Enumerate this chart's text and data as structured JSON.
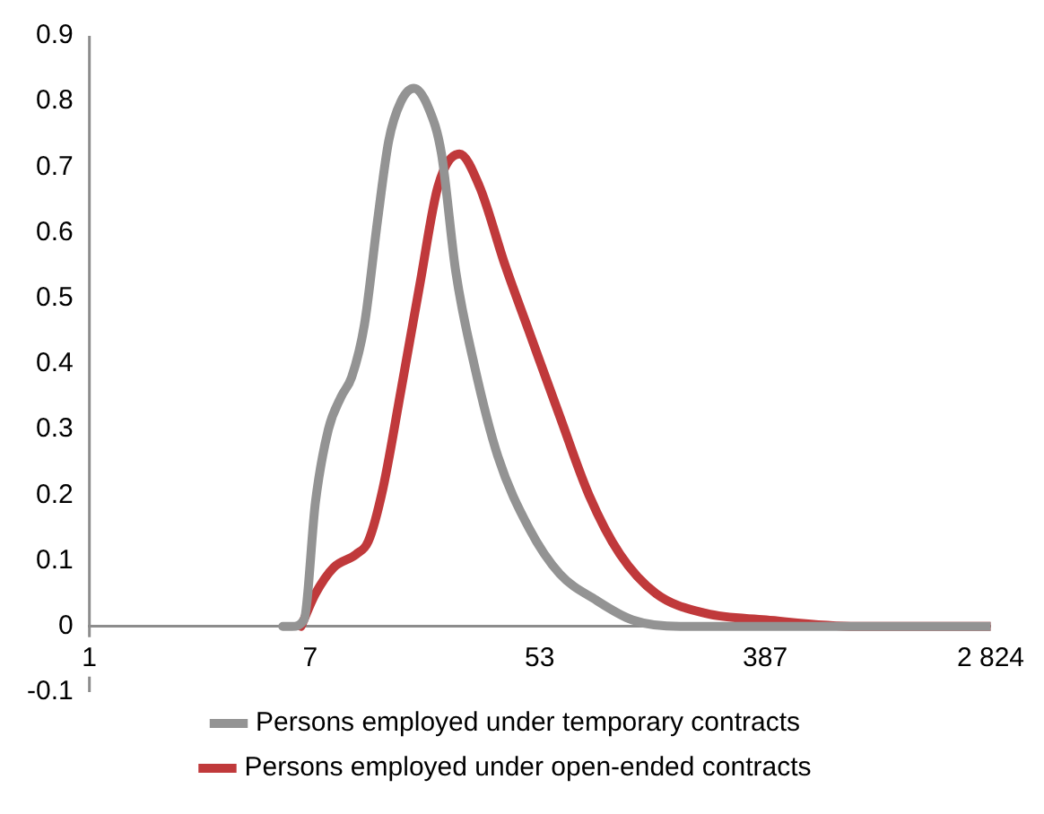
{
  "chart_data": {
    "type": "line",
    "log": "x",
    "xlim": [
      1,
      2824
    ],
    "xticks": [
      1,
      7,
      53,
      387,
      {
        "value": 2824,
        "label": "2 824"
      }
    ],
    "ylim": [
      -0.1,
      0.9
    ],
    "yticks": [
      -0.1,
      0,
      0.1,
      0.2,
      0.3,
      0.4,
      0.5,
      0.6,
      0.7,
      0.8,
      0.9
    ],
    "grid": false,
    "legend": "bottom",
    "marker": "none",
    "line_style": "solid",
    "series": [
      {
        "name": "Persons employed under temporary contracts",
        "color": "#939393",
        "x": [
          5.5,
          5.96,
          6.63,
          7.34,
          8.22,
          9.2,
          10.1,
          11.3,
          12.7,
          14,
          15.6,
          17.5,
          19.9,
          22.3,
          25.3,
          29.7,
          36.6,
          48.2,
          63.3,
          87.3,
          120,
          183,
          390,
          2824
        ],
        "values": [
          0,
          0,
          0.01,
          0.19,
          0.3,
          0.35,
          0.38,
          0.46,
          0.62,
          0.74,
          0.8,
          0.82,
          0.79,
          0.72,
          0.54,
          0.4,
          0.26,
          0.15,
          0.08,
          0.04,
          0.01,
          0,
          0,
          0
        ]
      },
      {
        "name": "Persons employed under open-ended contracts",
        "color": "#c0393b",
        "x": [
          6.46,
          7.34,
          8.62,
          10.5,
          11.7,
          13.3,
          15.6,
          18.4,
          21.6,
          26.1,
          31.2,
          39.1,
          48.2,
          63.3,
          81.9,
          107.6,
          148,
          229,
          390,
          870,
          2824
        ],
        "values": [
          0,
          0.05,
          0.09,
          0.11,
          0.13,
          0.21,
          0.36,
          0.52,
          0.67,
          0.72,
          0.67,
          0.55,
          0.45,
          0.32,
          0.2,
          0.11,
          0.05,
          0.02,
          0.01,
          0,
          0
        ]
      }
    ]
  }
}
